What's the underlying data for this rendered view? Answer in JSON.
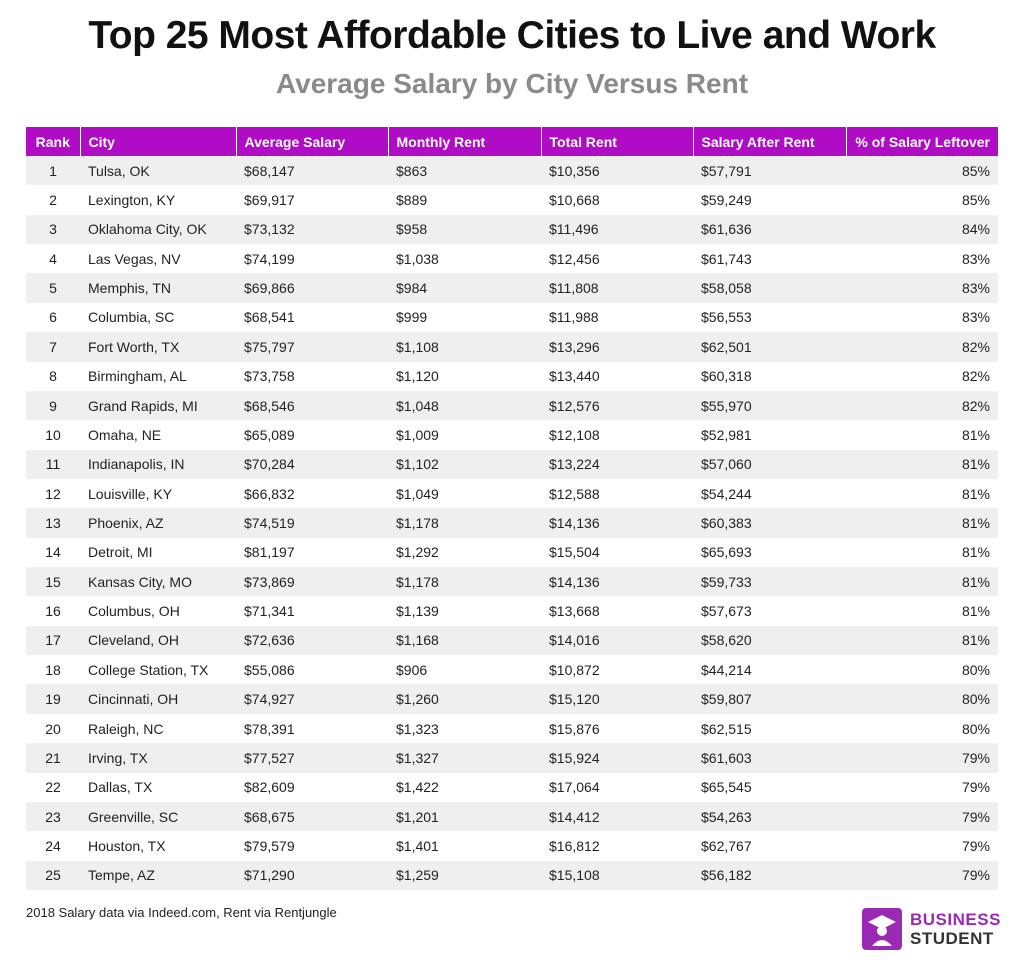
{
  "header": {
    "title": "Top 25 Most Affordable Cities to Live and Work",
    "subtitle": "Average Salary by City Versus Rent"
  },
  "table": {
    "columns": [
      "Rank",
      "City",
      "Average Salary",
      "Monthly Rent",
      "Total Rent",
      "Salary After Rent",
      "% of Salary Leftover"
    ],
    "rows": [
      [
        "1",
        "Tulsa, OK",
        "$68,147",
        "$863",
        "$10,356",
        "$57,791",
        "85%"
      ],
      [
        "2",
        "Lexington, KY",
        "$69,917",
        "$889",
        "$10,668",
        "$59,249",
        "85%"
      ],
      [
        "3",
        "Oklahoma City, OK",
        "$73,132",
        "$958",
        "$11,496",
        "$61,636",
        "84%"
      ],
      [
        "4",
        "Las Vegas, NV",
        "$74,199",
        "$1,038",
        "$12,456",
        "$61,743",
        "83%"
      ],
      [
        "5",
        "Memphis, TN",
        "$69,866",
        "$984",
        "$11,808",
        "$58,058",
        "83%"
      ],
      [
        "6",
        "Columbia, SC",
        "$68,541",
        "$999",
        "$11,988",
        "$56,553",
        "83%"
      ],
      [
        "7",
        "Fort Worth, TX",
        "$75,797",
        "$1,108",
        "$13,296",
        "$62,501",
        "82%"
      ],
      [
        "8",
        "Birmingham, AL",
        "$73,758",
        "$1,120",
        "$13,440",
        "$60,318",
        "82%"
      ],
      [
        "9",
        "Grand Rapids, MI",
        "$68,546",
        "$1,048",
        "$12,576",
        "$55,970",
        "82%"
      ],
      [
        "10",
        "Omaha, NE",
        "$65,089",
        "$1,009",
        "$12,108",
        "$52,981",
        "81%"
      ],
      [
        "11",
        "Indianapolis, IN",
        "$70,284",
        "$1,102",
        "$13,224",
        "$57,060",
        "81%"
      ],
      [
        "12",
        "Louisville, KY",
        "$66,832",
        "$1,049",
        "$12,588",
        "$54,244",
        "81%"
      ],
      [
        "13",
        "Phoenix, AZ",
        "$74,519",
        "$1,178",
        "$14,136",
        "$60,383",
        "81%"
      ],
      [
        "14",
        "Detroit, MI",
        "$81,197",
        "$1,292",
        "$15,504",
        "$65,693",
        "81%"
      ],
      [
        "15",
        "Kansas City, MO",
        "$73,869",
        "$1,178",
        "$14,136",
        "$59,733",
        "81%"
      ],
      [
        "16",
        "Columbus, OH",
        "$71,341",
        "$1,139",
        "$13,668",
        "$57,673",
        "81%"
      ],
      [
        "17",
        "Cleveland, OH",
        "$72,636",
        "$1,168",
        "$14,016",
        "$58,620",
        "81%"
      ],
      [
        "18",
        "College Station, TX",
        "$55,086",
        "$906",
        "$10,872",
        "$44,214",
        "80%"
      ],
      [
        "19",
        "Cincinnati, OH",
        "$74,927",
        "$1,260",
        "$15,120",
        "$59,807",
        "80%"
      ],
      [
        "20",
        "Raleigh, NC",
        "$78,391",
        "$1,323",
        "$15,876",
        "$62,515",
        "80%"
      ],
      [
        "21",
        "Irving, TX",
        "$77,527",
        "$1,327",
        "$15,924",
        "$61,603",
        "79%"
      ],
      [
        "22",
        "Dallas, TX",
        "$82,609",
        "$1,422",
        "$17,064",
        "$65,545",
        "79%"
      ],
      [
        "23",
        "Greenville, SC",
        "$68,675",
        "$1,201",
        "$14,412",
        "$54,263",
        "79%"
      ],
      [
        "24",
        "Houston, TX",
        "$79,579",
        "$1,401",
        "$16,812",
        "$62,767",
        "79%"
      ],
      [
        "25",
        "Tempe, AZ",
        "$71,290",
        "$1,259",
        "$15,108",
        "$56,182",
        "79%"
      ]
    ]
  },
  "footer": {
    "source": "2018 Salary data via Indeed.com, Rent via Rentjungle"
  },
  "logo": {
    "line1": "BUSINESS",
    "line2": "STUDENT"
  }
}
